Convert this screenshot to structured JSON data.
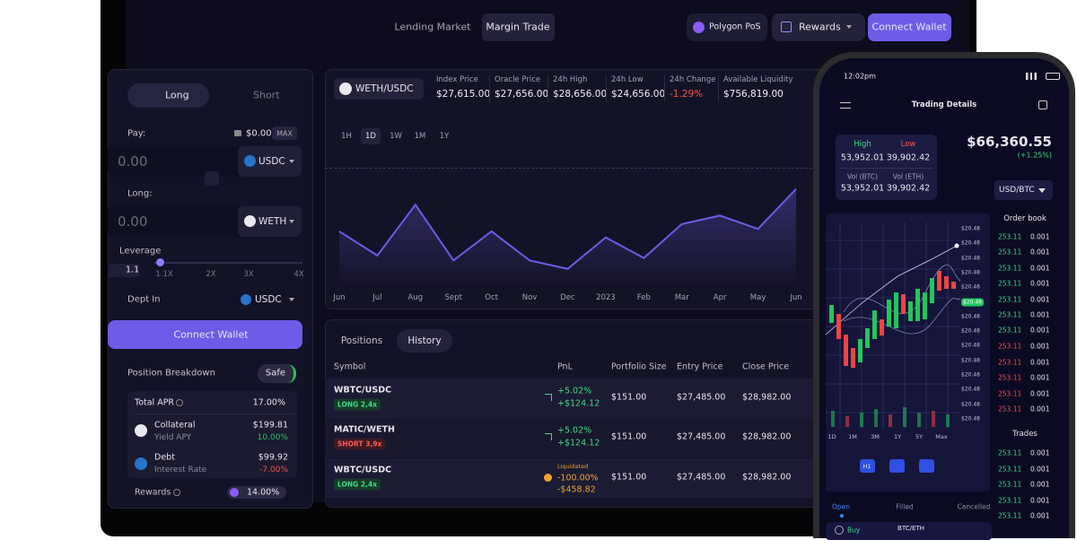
{
  "nav": {
    "links": [
      "Lending Market",
      "Margin Trade"
    ],
    "network": "Polygon PoS",
    "rewards": "Rewards",
    "connect": "Connect Wallet"
  },
  "trade": {
    "tabs": [
      "Long",
      "Short"
    ],
    "pay_label": "Pay:",
    "balance": "$0.00",
    "max": "MAX",
    "pay_amount": "0.00",
    "pay_token": "USDC",
    "long_label": "Long:",
    "long_amount": "0.00",
    "long_token": "WETH",
    "leverage_label": "Leverage",
    "leverage_value": "1.1",
    "leverage_ticks": [
      "1.1X",
      "2X",
      "3X",
      "4X"
    ],
    "dept_label": "Dept In",
    "dept_token": "USDC",
    "button": "Connect Wallet",
    "breakdown": "Position Breakdown",
    "status": "Safe",
    "total_apr": {
      "label": "Total APR",
      "value": "17.00%"
    },
    "collateral": {
      "label": "Collateral",
      "value": "$199.81",
      "sub_label": "Yield APY",
      "sub_value": "10.00%"
    },
    "debt": {
      "label": "Debt",
      "value": "$99.92",
      "sub_label": "Interest Rate",
      "sub_value": "-7.00%"
    },
    "rewards": {
      "label": "Rewards",
      "value": "14.00%"
    }
  },
  "market": {
    "pair": "WETH/USDC",
    "stats": [
      {
        "label": "Index Price",
        "value": "$27,615.00"
      },
      {
        "label": "Oracle Price",
        "value": "$27,656.00"
      },
      {
        "label": "24h High",
        "value": "$28,656.00"
      },
      {
        "label": "24h Low",
        "value": "$24,656.00"
      },
      {
        "label": "24h Change",
        "value": "-1.29%"
      },
      {
        "label": "Available Liquidity",
        "value": "$756,819.00"
      }
    ],
    "timeframes": [
      "1H",
      "1D",
      "1W",
      "1M",
      "1Y"
    ],
    "active_timeframe": "1D"
  },
  "chart": {
    "type": "line",
    "x": [
      "Jun",
      "Jul",
      "Aug",
      "Sept",
      "Oct",
      "Nov",
      "Dec",
      "2023",
      "Feb",
      "Mar",
      "Apr",
      "May",
      "Jun"
    ],
    "values": [
      46,
      26,
      68,
      22,
      46,
      22,
      15,
      41,
      24,
      52,
      59,
      48,
      81
    ],
    "ylim": [
      0,
      100
    ],
    "color": "#6c5ce7"
  },
  "positions": {
    "tabs": [
      "Positions",
      "History"
    ],
    "active_tab": "History",
    "headers": [
      "Symbol",
      "PnL",
      "Portfolio Size",
      "Entry Price",
      "Close Price"
    ],
    "rows": [
      {
        "symbol": "WBTC/USDC",
        "side": "LONG 2,4x",
        "pnl": [
          "+5.02%",
          "+$124.12"
        ],
        "size": "$151.00",
        "entry": "$27,485.00",
        "close": "$28,982.00"
      },
      {
        "symbol": "MATIC/WETH",
        "side": "SHORT 3,9x",
        "pnl": [
          "+5.02%",
          "+$124.12"
        ],
        "size": "$151.00",
        "entry": "$27,485.00",
        "close": "$28,982.00"
      },
      {
        "symbol": "WBTC/USDC",
        "side": "LONG 2,4x",
        "status": "Liquidated",
        "pnl": [
          "-100.00%",
          "-$458.82"
        ],
        "size": "$151.00",
        "entry": "$27,485.00",
        "close": "$28,982.00"
      }
    ]
  },
  "phone": {
    "time": "12:02pm",
    "title": "Trading Details",
    "high": {
      "label": "High",
      "value": "53,952.01"
    },
    "low": {
      "label": "Low",
      "value": "39,902.42"
    },
    "vol_btc": {
      "label": "Vol (BTC)",
      "value": "53,952.01"
    },
    "vol_eth": {
      "label": "Vol (ETH)",
      "value": "39,902.42"
    },
    "price": "$66,360.55",
    "change": "(+1.25%)",
    "pair": "USD/BTC",
    "axis_labels": [
      "$20.48",
      "$20.48",
      "$20.48",
      "$20.48",
      "$20.48",
      "$20.48",
      "$20.48",
      "$20.48",
      "$20.48",
      "$20.48",
      "$20.48",
      "$20.48",
      "$20.48",
      "$20.48"
    ],
    "ranges": [
      "1D",
      "1M",
      "3M",
      "1Y",
      "5Y",
      "Max"
    ],
    "tool": "H1",
    "order_book": {
      "title": "Order book",
      "buy": [
        [
          "253.11",
          "0.001"
        ],
        [
          "253.11",
          "0.001"
        ],
        [
          "253.11",
          "0.001"
        ],
        [
          "253.11",
          "0.001"
        ],
        [
          "253.11",
          "0.001"
        ],
        [
          "253.11",
          "0.001"
        ],
        [
          "253.11",
          "0.001"
        ]
      ],
      "sell": [
        [
          "253.11",
          "0.001"
        ],
        [
          "253.11",
          "0.001"
        ],
        [
          "253.11",
          "0.001"
        ],
        [
          "253.11",
          "0.001"
        ],
        [
          "253.11",
          "0.001"
        ]
      ]
    },
    "trades": {
      "title": "Trades",
      "rows": [
        [
          "253.11",
          "0.001"
        ],
        [
          "253.11",
          "0.001"
        ],
        [
          "253.11",
          "0.001"
        ],
        [
          "253.11",
          "0.001"
        ],
        [
          "253.11",
          "0.001"
        ]
      ]
    },
    "tabs": [
      "Open",
      "Filled",
      "Cancelled"
    ],
    "order": {
      "side": "Buy",
      "pair": "BTC/ETH"
    }
  }
}
